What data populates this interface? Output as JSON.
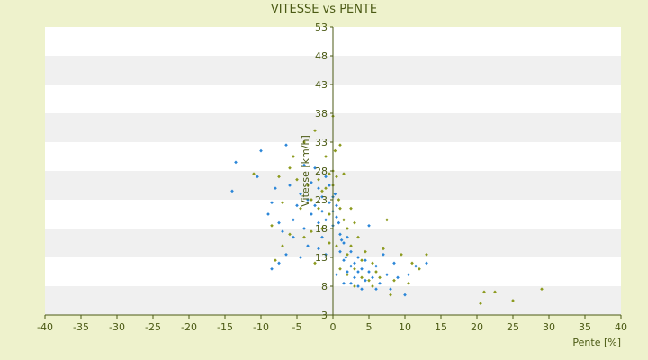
{
  "chart_data": {
    "type": "scatter",
    "title": "VITESSE vs PENTE",
    "xlabel": "Pente [%]",
    "ylabel": "Vitesse [km/h]",
    "xlim": [
      -40,
      40
    ],
    "ylim": [
      3,
      53
    ],
    "x_ticks": [
      -40,
      -35,
      -30,
      -25,
      -20,
      -15,
      -10,
      -5,
      0,
      5,
      10,
      15,
      20,
      25,
      30,
      35,
      40
    ],
    "y_ticks": [
      3,
      8,
      13,
      18,
      23,
      28,
      33,
      38,
      43,
      48,
      53
    ],
    "grid": "horizontal alternating bands",
    "legend": "none",
    "colors": {
      "background": "#eef2cc",
      "plot_band_light": "#ffffff",
      "plot_band_dark": "#f0f0f0",
      "axis": "#4b5a14",
      "series_blue": "#2b86d8",
      "series_olive": "#8c9a1e"
    },
    "series": [
      {
        "color": "#2b86d8",
        "points": [
          [
            -14.0,
            24.5
          ],
          [
            -13.5,
            29.5
          ],
          [
            -10.5,
            27.0
          ],
          [
            -10.0,
            31.5
          ],
          [
            -9.0,
            20.5
          ],
          [
            -8.5,
            22.5
          ],
          [
            -8.0,
            25.0
          ],
          [
            -7.5,
            19.0
          ],
          [
            -7.0,
            17.5
          ],
          [
            -6.5,
            32.5
          ],
          [
            -6.0,
            25.5
          ],
          [
            -5.5,
            19.5
          ],
          [
            -5.0,
            22.0
          ],
          [
            -4.5,
            24.0
          ],
          [
            -4.0,
            29.0
          ],
          [
            -4.0,
            18.0
          ],
          [
            -3.5,
            23.0
          ],
          [
            -3.0,
            20.5
          ],
          [
            -3.0,
            26.0
          ],
          [
            -2.5,
            28.5
          ],
          [
            -2.5,
            22.0
          ],
          [
            -2.0,
            19.0
          ],
          [
            -2.0,
            25.0
          ],
          [
            -1.5,
            21.0
          ],
          [
            -1.5,
            23.5
          ],
          [
            -1.0,
            27.0
          ],
          [
            -1.0,
            19.5
          ],
          [
            -0.5,
            22.5
          ],
          [
            -0.5,
            25.5
          ],
          [
            0.0,
            21.0
          ],
          [
            0.0,
            23.5
          ],
          [
            0.0,
            18.5
          ],
          [
            0.3,
            24.0
          ],
          [
            0.5,
            20.0
          ],
          [
            0.5,
            22.0
          ],
          [
            0.8,
            19.0
          ],
          [
            1.0,
            17.0
          ],
          [
            1.0,
            14.0
          ],
          [
            1.2,
            16.0
          ],
          [
            1.5,
            12.5
          ],
          [
            1.5,
            15.5
          ],
          [
            1.8,
            13.0
          ],
          [
            2.0,
            10.5
          ],
          [
            2.0,
            16.5
          ],
          [
            2.5,
            11.5
          ],
          [
            2.5,
            14.0
          ],
          [
            3.0,
            12.0
          ],
          [
            3.0,
            9.5
          ],
          [
            3.5,
            13.0
          ],
          [
            3.5,
            10.5
          ],
          [
            4.0,
            11.0
          ],
          [
            4.5,
            9.0
          ],
          [
            4.5,
            12.5
          ],
          [
            5.0,
            10.5
          ],
          [
            5.0,
            18.5
          ],
          [
            5.5,
            9.5
          ],
          [
            6.0,
            11.5
          ],
          [
            6.5,
            8.5
          ],
          [
            7.0,
            13.5
          ],
          [
            7.5,
            10.0
          ],
          [
            8.0,
            7.5
          ],
          [
            8.5,
            12.0
          ],
          [
            9.0,
            9.5
          ],
          [
            10.0,
            6.5
          ],
          [
            10.5,
            10.0
          ],
          [
            11.5,
            11.5
          ],
          [
            13.0,
            12.0
          ],
          [
            -5.5,
            16.5
          ],
          [
            -6.5,
            13.5
          ],
          [
            -7.5,
            12.0
          ],
          [
            -8.5,
            11.0
          ],
          [
            -2.0,
            14.5
          ],
          [
            -1.0,
            13.5
          ],
          [
            0.5,
            10.0
          ],
          [
            1.5,
            8.5
          ],
          [
            2.5,
            8.5
          ],
          [
            3.5,
            8.0
          ],
          [
            4.0,
            7.5
          ],
          [
            6.0,
            7.5
          ],
          [
            -3.5,
            15.0
          ],
          [
            -4.5,
            13.0
          ],
          [
            -1.5,
            16.5
          ]
        ]
      },
      {
        "color": "#8c9a1e",
        "points": [
          [
            -11.0,
            27.5
          ],
          [
            -8.5,
            18.5
          ],
          [
            -7.5,
            27.0
          ],
          [
            -7.0,
            22.5
          ],
          [
            -6.0,
            28.5
          ],
          [
            -5.5,
            30.5
          ],
          [
            -5.0,
            26.5
          ],
          [
            -4.5,
            21.5
          ],
          [
            -4.0,
            33.0
          ],
          [
            -3.5,
            25.5
          ],
          [
            -3.0,
            23.0
          ],
          [
            -2.5,
            35.0
          ],
          [
            -2.0,
            26.5
          ],
          [
            -2.0,
            21.5
          ],
          [
            -1.5,
            24.5
          ],
          [
            -1.0,
            25.0
          ],
          [
            -1.0,
            30.5
          ],
          [
            -0.5,
            20.5
          ],
          [
            -0.5,
            27.5
          ],
          [
            0.0,
            37.5
          ],
          [
            0.0,
            28.0
          ],
          [
            0.0,
            25.5
          ],
          [
            0.3,
            31.5
          ],
          [
            0.5,
            27.0
          ],
          [
            0.8,
            23.0
          ],
          [
            1.0,
            32.5
          ],
          [
            1.0,
            21.5
          ],
          [
            1.5,
            19.5
          ],
          [
            1.5,
            27.5
          ],
          [
            2.0,
            18.0
          ],
          [
            2.0,
            13.5
          ],
          [
            2.5,
            21.5
          ],
          [
            2.5,
            15.0
          ],
          [
            3.0,
            19.0
          ],
          [
            3.0,
            11.0
          ],
          [
            3.5,
            16.5
          ],
          [
            4.0,
            12.5
          ],
          [
            4.5,
            14.0
          ],
          [
            5.0,
            9.0
          ],
          [
            5.5,
            12.0
          ],
          [
            6.0,
            10.5
          ],
          [
            7.0,
            14.5
          ],
          [
            7.5,
            19.5
          ],
          [
            8.0,
            6.5
          ],
          [
            8.5,
            9.0
          ],
          [
            9.5,
            13.5
          ],
          [
            10.5,
            8.5
          ],
          [
            11.0,
            12.0
          ],
          [
            12.0,
            11.0
          ],
          [
            13.0,
            13.5
          ],
          [
            20.5,
            5.0
          ],
          [
            21.0,
            7.0
          ],
          [
            22.5,
            7.0
          ],
          [
            25.0,
            5.5
          ],
          [
            29.0,
            7.5
          ],
          [
            -8.0,
            12.5
          ],
          [
            -7.0,
            15.0
          ],
          [
            -6.0,
            17.0
          ],
          [
            -4.0,
            16.5
          ],
          [
            -3.0,
            17.5
          ],
          [
            -1.5,
            18.0
          ],
          [
            0.5,
            15.0
          ],
          [
            1.0,
            11.0
          ],
          [
            2.0,
            10.0
          ],
          [
            3.0,
            8.0
          ],
          [
            4.0,
            9.5
          ],
          [
            5.5,
            8.0
          ],
          [
            6.5,
            9.5
          ],
          [
            -2.5,
            12.0
          ],
          [
            -0.5,
            15.5
          ]
        ]
      }
    ]
  }
}
